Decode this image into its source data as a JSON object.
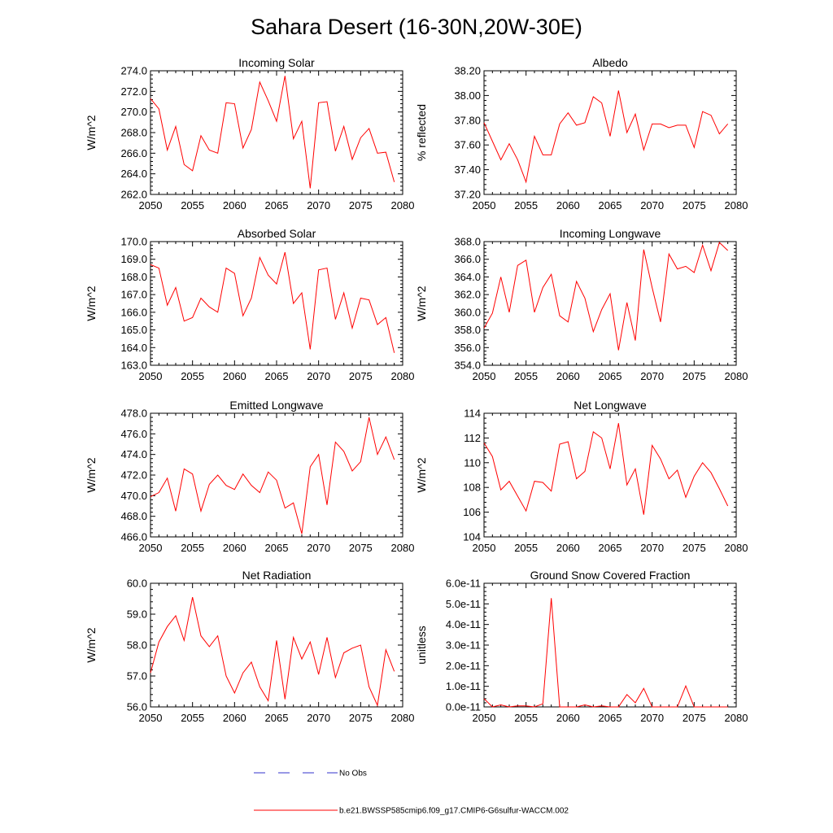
{
  "title": "Sahara Desert (16-30N,20W-30E)",
  "legend": {
    "obs_label": "No Obs",
    "obs_color": "#3333cc",
    "model_label": "b.e21.BWSSP585cmip6.f09_g17.CMIP6-G6sulfur-WACCM.002",
    "model_color": "#ff0000"
  },
  "chart_data": [
    {
      "type": "line",
      "title": "Incoming Solar",
      "ylabel": "W/m^2",
      "xlim": [
        2050,
        2080
      ],
      "ylim": [
        262,
        274
      ],
      "xticks": [
        "2050",
        "2055",
        "2060",
        "2065",
        "2070",
        "2075",
        "2080"
      ],
      "yticks": [
        "262.0",
        "264.0",
        "266.0",
        "268.0",
        "270.0",
        "272.0",
        "274.0"
      ],
      "series": [
        {
          "color": "#ff0000",
          "x": [
            2050,
            2051,
            2052,
            2053,
            2054,
            2055,
            2056,
            2057,
            2058,
            2059,
            2060,
            2061,
            2062,
            2063,
            2064,
            2065,
            2066,
            2067,
            2068,
            2069,
            2070,
            2071,
            2072,
            2073,
            2074,
            2075,
            2076,
            2077,
            2078,
            2079
          ],
          "y": [
            271.3,
            270.3,
            266.3,
            268.6,
            264.9,
            264.3,
            267.7,
            266.3,
            266.0,
            270.9,
            270.8,
            266.5,
            268.3,
            272.9,
            271.1,
            269.1,
            273.5,
            267.4,
            269.1,
            262.6,
            270.9,
            271.0,
            266.2,
            268.6,
            265.4,
            267.5,
            268.4,
            266.0,
            266.1,
            263.2
          ]
        }
      ]
    },
    {
      "type": "line",
      "title": "Albedo",
      "ylabel": "% reflected",
      "xlim": [
        2050,
        2080
      ],
      "ylim": [
        37.2,
        38.2
      ],
      "xticks": [
        "2050",
        "2055",
        "2060",
        "2065",
        "2070",
        "2075",
        "2080"
      ],
      "yticks": [
        "37.20",
        "37.40",
        "37.60",
        "37.80",
        "38.00",
        "38.20"
      ],
      "series": [
        {
          "color": "#ff0000",
          "x": [
            2050,
            2051,
            2052,
            2053,
            2054,
            2055,
            2056,
            2057,
            2058,
            2059,
            2060,
            2061,
            2062,
            2063,
            2064,
            2065,
            2066,
            2067,
            2068,
            2069,
            2070,
            2071,
            2072,
            2073,
            2074,
            2075,
            2076,
            2077,
            2078,
            2079
          ],
          "y": [
            37.78,
            37.63,
            37.48,
            37.61,
            37.48,
            37.3,
            37.67,
            37.52,
            37.52,
            37.77,
            37.86,
            37.76,
            37.78,
            37.99,
            37.94,
            37.67,
            38.04,
            37.7,
            37.85,
            37.56,
            37.77,
            37.77,
            37.74,
            37.76,
            37.76,
            37.58,
            37.87,
            37.84,
            37.69,
            37.77
          ]
        }
      ]
    },
    {
      "type": "line",
      "title": "Absorbed Solar",
      "ylabel": "W/m^2",
      "xlim": [
        2050,
        2080
      ],
      "ylim": [
        163,
        170
      ],
      "xticks": [
        "2050",
        "2055",
        "2060",
        "2065",
        "2070",
        "2075",
        "2080"
      ],
      "yticks": [
        "163.0",
        "164.0",
        "165.0",
        "166.0",
        "167.0",
        "168.0",
        "169.0",
        "170.0"
      ],
      "series": [
        {
          "color": "#ff0000",
          "x": [
            2050,
            2051,
            2052,
            2053,
            2054,
            2055,
            2056,
            2057,
            2058,
            2059,
            2060,
            2061,
            2062,
            2063,
            2064,
            2065,
            2066,
            2067,
            2068,
            2069,
            2070,
            2071,
            2072,
            2073,
            2074,
            2075,
            2076,
            2077,
            2078,
            2079
          ],
          "y": [
            168.7,
            168.5,
            166.4,
            167.4,
            165.5,
            165.7,
            166.8,
            166.3,
            166.0,
            168.5,
            168.2,
            165.8,
            166.8,
            169.1,
            168.1,
            167.6,
            169.4,
            166.5,
            167.1,
            163.9,
            168.4,
            168.5,
            165.6,
            167.1,
            165.1,
            166.8,
            166.7,
            165.3,
            165.7,
            163.7
          ]
        }
      ]
    },
    {
      "type": "line",
      "title": "Incoming Longwave",
      "ylabel": "W/m^2",
      "xlim": [
        2050,
        2080
      ],
      "ylim": [
        354,
        368
      ],
      "xticks": [
        "2050",
        "2055",
        "2060",
        "2065",
        "2070",
        "2075",
        "2080"
      ],
      "yticks": [
        "354.0",
        "356.0",
        "358.0",
        "360.0",
        "362.0",
        "364.0",
        "366.0",
        "368.0"
      ],
      "series": [
        {
          "color": "#ff0000",
          "x": [
            2050,
            2051,
            2052,
            2053,
            2054,
            2055,
            2056,
            2057,
            2058,
            2059,
            2060,
            2061,
            2062,
            2063,
            2064,
            2065,
            2066,
            2067,
            2068,
            2069,
            2070,
            2071,
            2072,
            2073,
            2074,
            2075,
            2076,
            2077,
            2078,
            2079
          ],
          "y": [
            358.2,
            359.9,
            364.0,
            360.0,
            365.3,
            365.9,
            360.0,
            362.8,
            364.3,
            359.6,
            358.9,
            363.5,
            361.6,
            357.8,
            360.3,
            362.1,
            355.7,
            361.1,
            356.8,
            367.1,
            362.8,
            358.9,
            366.6,
            364.9,
            365.2,
            364.5,
            367.6,
            364.7,
            367.9,
            367.0
          ]
        }
      ]
    },
    {
      "type": "line",
      "title": "Emitted Longwave",
      "ylabel": "W/m^2",
      "xlim": [
        2050,
        2080
      ],
      "ylim": [
        466,
        478
      ],
      "xticks": [
        "2050",
        "2055",
        "2060",
        "2065",
        "2070",
        "2075",
        "2080"
      ],
      "yticks": [
        "466.0",
        "468.0",
        "470.0",
        "472.0",
        "474.0",
        "476.0",
        "478.0"
      ],
      "series": [
        {
          "color": "#ff0000",
          "x": [
            2050,
            2051,
            2052,
            2053,
            2054,
            2055,
            2056,
            2057,
            2058,
            2059,
            2060,
            2061,
            2062,
            2063,
            2064,
            2065,
            2066,
            2067,
            2068,
            2069,
            2070,
            2071,
            2072,
            2073,
            2074,
            2075,
            2076,
            2077,
            2078,
            2079
          ],
          "y": [
            469.9,
            470.3,
            471.7,
            468.5,
            472.6,
            472.1,
            468.5,
            471.1,
            472.0,
            471.0,
            470.6,
            472.1,
            471.0,
            470.3,
            472.3,
            471.5,
            468.8,
            469.3,
            466.3,
            472.8,
            474.0,
            469.1,
            475.2,
            474.3,
            472.4,
            473.3,
            477.6,
            474.0,
            475.7,
            473.5
          ]
        }
      ]
    },
    {
      "type": "line",
      "title": "Net Longwave",
      "ylabel": "W/m^2",
      "xlim": [
        2050,
        2080
      ],
      "ylim": [
        104,
        114
      ],
      "xticks": [
        "2050",
        "2055",
        "2060",
        "2065",
        "2070",
        "2075",
        "2080"
      ],
      "yticks": [
        "104",
        "106",
        "108",
        "110",
        "112",
        "114"
      ],
      "series": [
        {
          "color": "#ff0000",
          "x": [
            2050,
            2051,
            2052,
            2053,
            2054,
            2055,
            2056,
            2057,
            2058,
            2059,
            2060,
            2061,
            2062,
            2063,
            2064,
            2065,
            2066,
            2067,
            2068,
            2069,
            2070,
            2071,
            2072,
            2073,
            2074,
            2075,
            2076,
            2077,
            2078,
            2079
          ],
          "y": [
            111.6,
            110.5,
            107.8,
            108.5,
            107.3,
            106.1,
            108.5,
            108.4,
            107.7,
            111.5,
            111.7,
            108.7,
            109.3,
            112.5,
            112.0,
            109.5,
            113.2,
            108.2,
            109.5,
            105.8,
            111.4,
            110.3,
            108.7,
            109.4,
            107.2,
            108.9,
            110.0,
            109.2,
            107.9,
            106.5
          ]
        }
      ]
    },
    {
      "type": "line",
      "title": "Net Radiation",
      "ylabel": "W/m^2",
      "xlim": [
        2050,
        2080
      ],
      "ylim": [
        56,
        60
      ],
      "xticks": [
        "2050",
        "2055",
        "2060",
        "2065",
        "2070",
        "2075",
        "2080"
      ],
      "yticks": [
        "56.0",
        "57.0",
        "58.0",
        "59.0",
        "60.0"
      ],
      "series": [
        {
          "color": "#ff0000",
          "x": [
            2050,
            2051,
            2052,
            2053,
            2054,
            2055,
            2056,
            2057,
            2058,
            2059,
            2060,
            2061,
            2062,
            2063,
            2064,
            2065,
            2066,
            2067,
            2068,
            2069,
            2070,
            2071,
            2072,
            2073,
            2074,
            2075,
            2076,
            2077,
            2078,
            2079
          ],
          "y": [
            57.1,
            58.1,
            58.6,
            58.95,
            58.15,
            59.55,
            58.3,
            57.95,
            58.3,
            57.0,
            56.45,
            57.1,
            57.45,
            56.65,
            56.2,
            58.15,
            56.25,
            58.25,
            57.55,
            58.1,
            57.05,
            58.25,
            56.95,
            57.75,
            57.9,
            58.0,
            56.65,
            56.05,
            57.85,
            57.15
          ]
        }
      ]
    },
    {
      "type": "line",
      "title": "Ground Snow Covered Fraction",
      "ylabel": "unitless",
      "xlim": [
        2050,
        2080
      ],
      "ylim": [
        0,
        6e-11
      ],
      "xticks": [
        "2050",
        "2055",
        "2060",
        "2065",
        "2070",
        "2075",
        "2080"
      ],
      "yticks": [
        "0.0e-11",
        "1.0e-11",
        "2.0e-11",
        "3.0e-11",
        "4.0e-11",
        "5.0e-11",
        "6.0e-11"
      ],
      "series": [
        {
          "color": "#ff0000",
          "x": [
            2050,
            2051,
            2052,
            2053,
            2054,
            2055,
            2056,
            2057,
            2058,
            2059,
            2060,
            2061,
            2062,
            2063,
            2064,
            2065,
            2066,
            2067,
            2068,
            2069,
            2070,
            2071,
            2072,
            2073,
            2074,
            2075,
            2076,
            2077,
            2078,
            2079
          ],
          "y": [
            4e-12,
            0.0,
            1e-12,
            0.0,
            5e-13,
            5e-13,
            0.0,
            1.5e-12,
            5.28e-11,
            0.0,
            0.0,
            0.0,
            1e-12,
            0.0,
            5e-13,
            0.0,
            0.0,
            6e-12,
            2e-12,
            9e-12,
            0.0,
            0.0,
            0.0,
            0.0,
            1.02e-11,
            0.0,
            0.0,
            0.0,
            0.0,
            0.0
          ]
        }
      ]
    }
  ]
}
